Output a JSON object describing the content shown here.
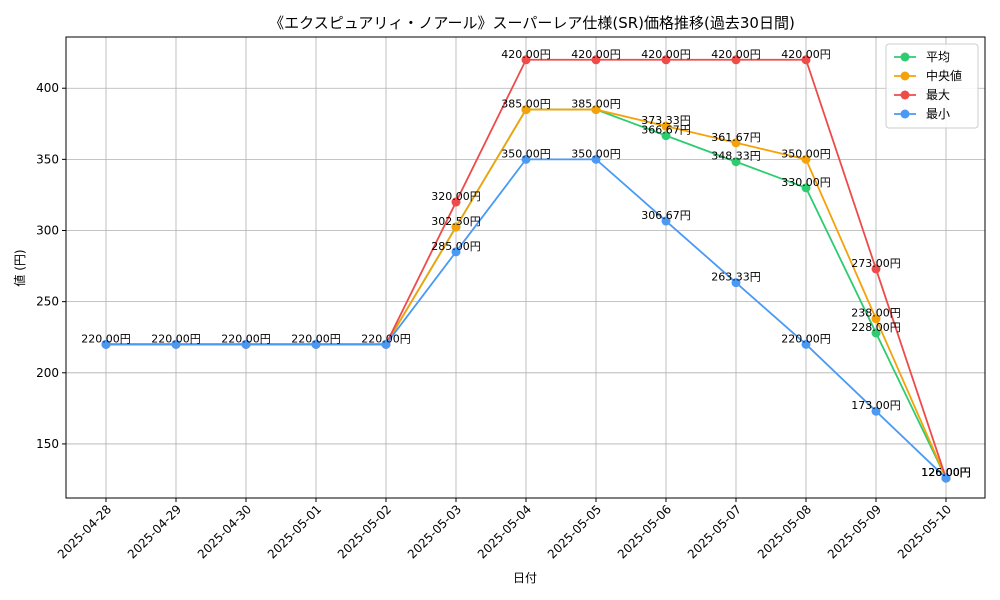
{
  "chart_data": {
    "type": "line",
    "title": "《エクスピュアリィ・ノアール》スーパーレア仕様(SR)価格推移(過去30日間)",
    "xlabel": "日付",
    "ylabel": "値 (円)",
    "x": [
      "2025-04-28",
      "2025-04-29",
      "2025-04-30",
      "2025-05-01",
      "2025-05-02",
      "2025-05-03",
      "2025-05-04",
      "2025-05-05",
      "2025-05-06",
      "2025-05-07",
      "2025-05-08",
      "2025-05-09",
      "2025-05-10"
    ],
    "ylim": [
      112,
      436
    ],
    "yticks": [
      150,
      200,
      250,
      300,
      350,
      400
    ],
    "grid": true,
    "legend_position": "top-right",
    "series": [
      {
        "name": "平均",
        "color": "#2ecc71",
        "values": [
          220,
          220,
          220,
          220,
          220,
          302.5,
          385,
          385,
          366.67,
          348.33,
          330,
          228,
          126
        ],
        "labels": [
          "",
          "",
          "",
          "",
          "",
          "",
          "",
          "",
          "366.67円",
          "348.33円",
          "330.00円",
          "228.00円",
          "126.00円"
        ]
      },
      {
        "name": "中央値",
        "color": "#f5a20a",
        "values": [
          220,
          220,
          220,
          220,
          220,
          302.5,
          385,
          385,
          373.33,
          361.67,
          350,
          238,
          126
        ],
        "labels": [
          "",
          "",
          "",
          "",
          "",
          "302.50円",
          "385.00円",
          "385.00円",
          "373.33円",
          "361.67円",
          "350.00円",
          "238.00円",
          "126.00円"
        ]
      },
      {
        "name": "最大",
        "color": "#ee4b4b",
        "values": [
          220,
          220,
          220,
          220,
          220,
          320,
          420,
          420,
          420,
          420,
          420,
          273,
          126
        ],
        "labels": [
          "",
          "",
          "",
          "",
          "",
          "320.00円",
          "420.00円",
          "420.00円",
          "420.00円",
          "420.00円",
          "420.00円",
          "273.00円",
          "126.00円"
        ]
      },
      {
        "name": "最小",
        "color": "#4a9af5",
        "values": [
          220,
          220,
          220,
          220,
          220,
          285,
          350,
          350,
          306.67,
          263.33,
          220,
          173,
          126
        ],
        "labels": [
          "220.00円",
          "220.00円",
          "220.00円",
          "220.00円",
          "220.00円",
          "285.00円",
          "350.00円",
          "350.00円",
          "306.67円",
          "263.33円",
          "220.00円",
          "173.00円",
          "126.00円"
        ]
      }
    ]
  }
}
